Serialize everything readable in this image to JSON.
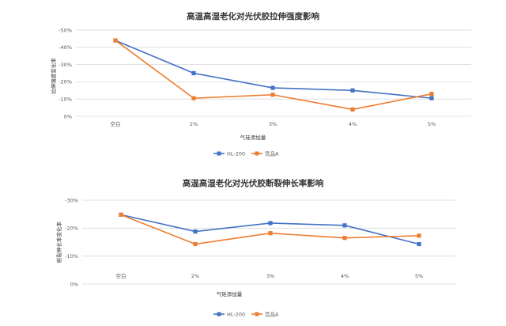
{
  "chart_data": [
    {
      "type": "line",
      "title": "高温高湿老化对光伏胶拉伸强度影响",
      "xlabel": "气硅添加量",
      "ylabel": "拉伸强度变化率",
      "categories": [
        "空白",
        "2%",
        "3%",
        "4%",
        "5%"
      ],
      "ylim": [
        0,
        -50
      ],
      "yticks": [
        "0%",
        "-10%",
        "-20%",
        "-30%",
        "-40%",
        "-50%"
      ],
      "ytick_values": [
        0,
        -10,
        -20,
        -30,
        -40,
        -50
      ],
      "grid": true,
      "legend_position": "bottom",
      "series": [
        {
          "name": "HL-200",
          "color": "#4472C4",
          "values": [
            -44,
            -25,
            -16.5,
            -15,
            -10.5
          ]
        },
        {
          "name": "竞品A",
          "color": "#ED7D31",
          "values": [
            -44,
            -10.5,
            -12.5,
            -4,
            -13
          ]
        }
      ]
    },
    {
      "type": "line",
      "title": "高温高湿老化对光伏胶断裂伸长率影响",
      "xlabel": "气硅添加量",
      "ylabel": "断裂伸长率变化率",
      "categories": [
        "空白",
        "2%",
        "3%",
        "4%",
        "5%"
      ],
      "ylim": [
        0,
        -30
      ],
      "yticks": [
        "0%",
        "-10%",
        "-20%",
        "-30%"
      ],
      "ytick_values": [
        0,
        -10,
        -20,
        -30
      ],
      "grid": true,
      "legend_position": "bottom",
      "series": [
        {
          "name": "HL-200",
          "color": "#4472C4",
          "values": [
            -24.8,
            -18.8,
            -21.8,
            -21,
            -14.3
          ]
        },
        {
          "name": "竞品A",
          "color": "#ED7D31",
          "values": [
            -24.8,
            -14.3,
            -18.2,
            -16.5,
            -17.3
          ]
        }
      ]
    }
  ]
}
